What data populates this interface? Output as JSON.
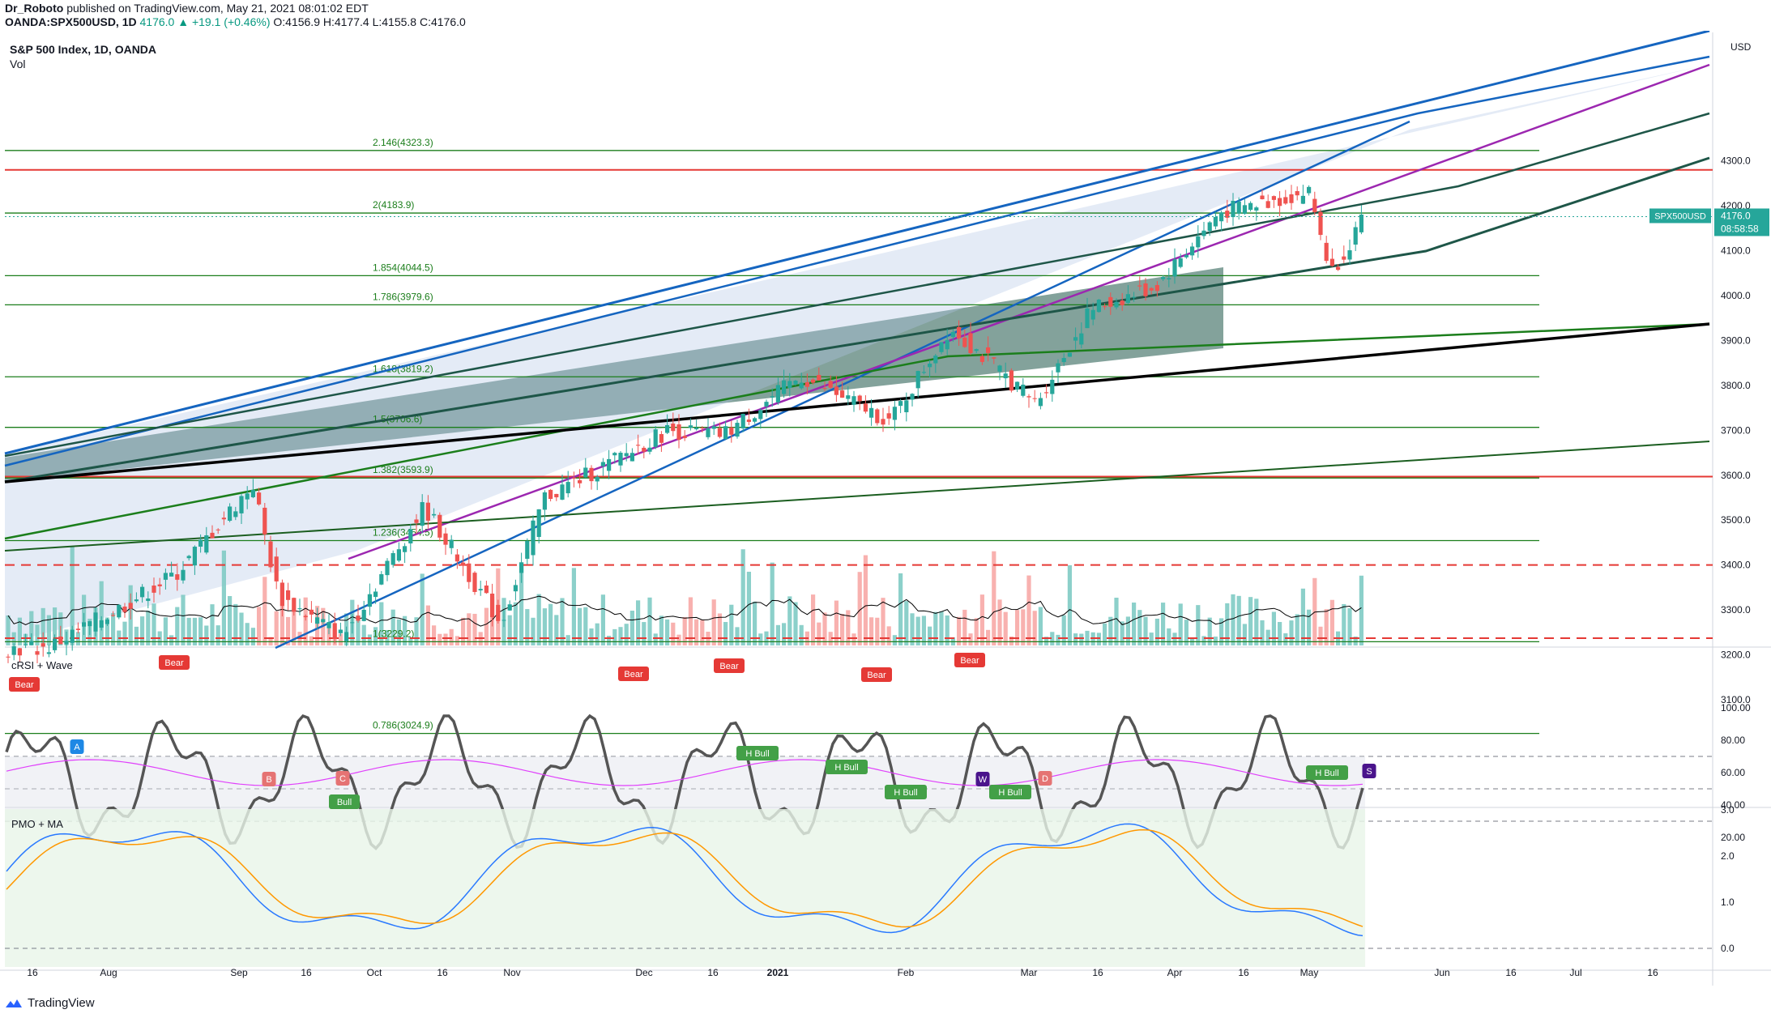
{
  "header": {
    "author": "Dr_Roboto",
    "published": "published on TradingView.com, May 21, 2021 08:01:02 EDT",
    "symbol": "OANDA:SPX500USD, 1D",
    "last": "4176.0",
    "change": "▲ +19.1 (+0.46%)",
    "ohlc": "O:4156.9  H:4177.4  L:4155.8  C:4176.0"
  },
  "legend": {
    "title": "S&P 500 Index, 1D, OANDA",
    "vol": "Vol",
    "currency": "USD",
    "price_tag_symbol": "SPX500USD",
    "price_tag_value": "4176.0",
    "price_tag_time": "08:58:58"
  },
  "panes": {
    "crsi_title": "cRSI + Wave",
    "pmo_title": "PMO + MA"
  },
  "brand": "TradingView",
  "colors": {
    "up": "#26a69a",
    "down": "#ef5350",
    "fib": "#1b7e1b",
    "channel": "#1565c0",
    "purple": "#9c27b0",
    "resistance": "#e53935",
    "support_black": "#000000",
    "pmo_line": "#2979ff",
    "pmo_ma": "#ff9800"
  },
  "chart_data": [
    {
      "type": "candlestick",
      "title": "S&P 500 Index, 1D, OANDA",
      "ylabel": "USD",
      "ylim": [
        3020,
        4340
      ],
      "y_ticks": [
        3100,
        3200,
        3300,
        3400,
        3500,
        3600,
        3700,
        3800,
        3900,
        4000,
        4100,
        4200,
        4300
      ],
      "x_tick_labels": [
        "16",
        "Aug",
        "Sep",
        "16",
        "Oct",
        "16",
        "Nov",
        "Dec",
        "16",
        "2021",
        "Feb",
        "Mar",
        "16",
        "Apr",
        "16",
        "May",
        "Jun",
        "16",
        "Jul",
        "16"
      ],
      "fib_levels": [
        {
          "label": "2.146(4323.3)",
          "value": 4323.3
        },
        {
          "label": "2(4183.9)",
          "value": 4183.9
        },
        {
          "label": "1.854(4044.5)",
          "value": 4044.5
        },
        {
          "label": "1.786(3979.6)",
          "value": 3979.6
        },
        {
          "label": "1.618(3819.2)",
          "value": 3819.2
        },
        {
          "label": "1.5(3706.6)",
          "value": 3706.6
        },
        {
          "label": "1.382(3593.9)",
          "value": 3593.9
        },
        {
          "label": "1.236(3454.5)",
          "value": 3454.5
        },
        {
          "label": "1(3229.2)",
          "value": 3229.2
        },
        {
          "label": "0.786(3024.9)",
          "value": 3024.9
        }
      ],
      "horizontal_lines": [
        {
          "value": 4280,
          "style": "solid",
          "color": "#e53935"
        },
        {
          "value": 3597,
          "style": "solid",
          "color": "#e53935"
        },
        {
          "value": 3400,
          "style": "dashed",
          "color": "#e53935"
        },
        {
          "value": 3237,
          "style": "dashed",
          "color": "#e53935"
        }
      ],
      "price_series": [
        {
          "date": "2020-07-16",
          "close": 3215
        },
        {
          "date": "2020-08-01",
          "close": 3300
        },
        {
          "date": "2020-08-15",
          "close": 3380
        },
        {
          "date": "2020-09-02",
          "close": 3580
        },
        {
          "date": "2020-09-08",
          "close": 3330
        },
        {
          "date": "2020-09-23",
          "close": 3240
        },
        {
          "date": "2020-10-12",
          "close": 3530
        },
        {
          "date": "2020-10-30",
          "close": 3270
        },
        {
          "date": "2020-11-09",
          "close": 3550
        },
        {
          "date": "2020-11-25",
          "close": 3630
        },
        {
          "date": "2020-12-08",
          "close": 3700
        },
        {
          "date": "2020-12-21",
          "close": 3690
        },
        {
          "date": "2021-01-08",
          "close": 3820
        },
        {
          "date": "2021-01-29",
          "close": 3720
        },
        {
          "date": "2021-02-12",
          "close": 3930
        },
        {
          "date": "2021-03-04",
          "close": 3760
        },
        {
          "date": "2021-03-17",
          "close": 3970
        },
        {
          "date": "2021-04-01",
          "close": 4020
        },
        {
          "date": "2021-04-16",
          "close": 4185
        },
        {
          "date": "2021-05-07",
          "close": 4230
        },
        {
          "date": "2021-05-12",
          "close": 4050
        },
        {
          "date": "2021-05-20",
          "close": 4176
        }
      ]
    },
    {
      "type": "line",
      "title": "cRSI + Wave",
      "ylim": [
        10,
        100
      ],
      "y_ticks": [
        20,
        40,
        60,
        80,
        100
      ],
      "levels": [
        30,
        50,
        70
      ],
      "labels": [
        "Bear",
        "Bear",
        "Bear",
        "Bear",
        "Bear",
        "Bear",
        "Bull",
        "H Bull",
        "H Bull",
        "H Bull",
        "H Bull",
        "H Bull",
        "A",
        "B",
        "C",
        "D",
        "S",
        "W"
      ]
    },
    {
      "type": "line",
      "title": "PMO + MA",
      "ylim": [
        -0.3,
        3.0
      ],
      "y_ticks": [
        0.0,
        1.0,
        2.0,
        3.0
      ],
      "series": []
    }
  ]
}
